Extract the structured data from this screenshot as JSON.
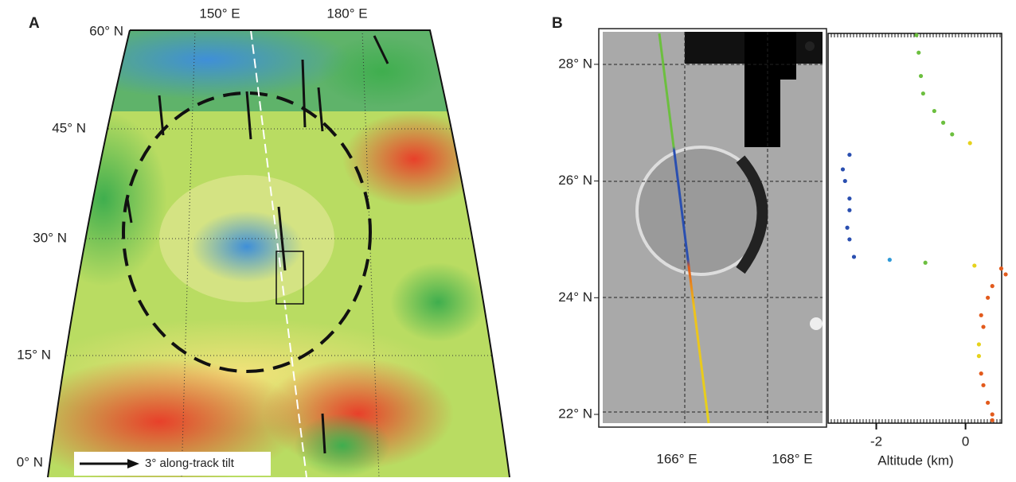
{
  "panel_a": {
    "label": "A",
    "lat_labels": [
      "60° N",
      "45° N",
      "30° N",
      "15° N",
      "0° N"
    ],
    "lon_labels": [
      "150° E",
      "180° E"
    ],
    "legend": "3° along-track tilt"
  },
  "panel_b": {
    "label": "B",
    "lon_labels": [
      "166° E",
      "168° E"
    ]
  },
  "chart_data": {
    "type": "scatter",
    "x_label": "Altitude (km)",
    "xlim": [
      -3.08,
      0.81
    ],
    "xticks": [
      -2,
      0
    ],
    "ylim": [
      21.85,
      28.53
    ],
    "yticks": [
      {
        "value": 28,
        "label": "28° N"
      },
      {
        "value": 26,
        "label": "26° N"
      },
      {
        "value": 24,
        "label": "24° N"
      },
      {
        "value": 22,
        "label": "22° N"
      }
    ],
    "latitude": [
      28.5,
      28.2,
      27.8,
      27.5,
      27.2,
      27.0,
      26.8,
      26.65,
      26.45,
      26.2,
      26.0,
      25.7,
      25.5,
      25.2,
      25.0,
      24.7,
      24.65,
      24.6,
      24.55,
      24.5,
      24.4,
      24.2,
      24.0,
      23.7,
      23.5,
      23.2,
      23.0,
      22.7,
      22.5,
      22.2,
      22.0,
      21.9
    ],
    "values": [
      -1.1,
      -1.05,
      -1.0,
      -0.95,
      -0.7,
      -0.5,
      -0.3,
      0.1,
      -2.6,
      -2.75,
      -2.7,
      -2.6,
      -2.6,
      -2.65,
      -2.6,
      -2.5,
      -1.7,
      -0.9,
      0.2,
      0.8,
      0.9,
      0.6,
      0.5,
      0.35,
      0.4,
      0.3,
      0.3,
      0.35,
      0.4,
      0.5,
      0.6,
      0.6
    ]
  }
}
